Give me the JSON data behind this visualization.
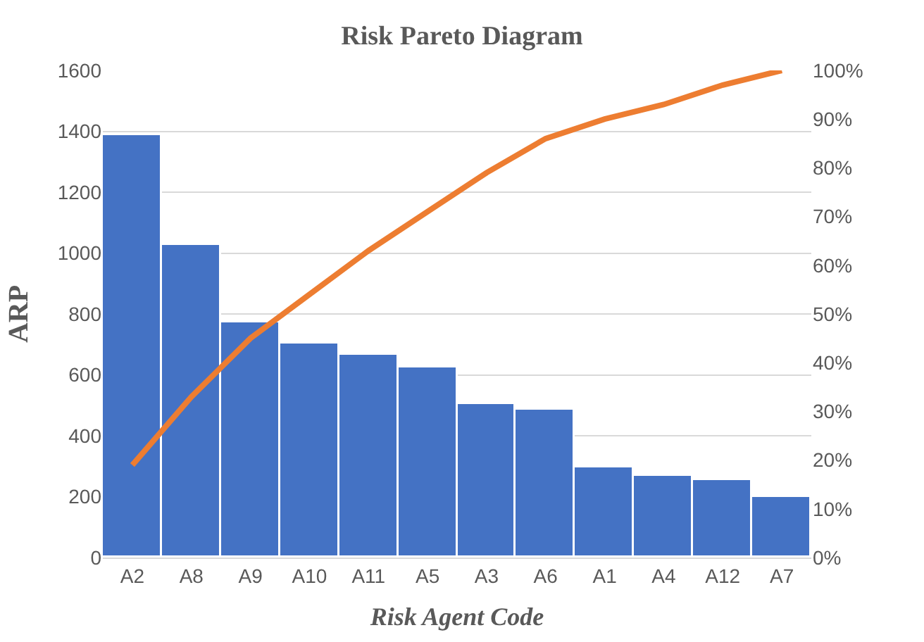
{
  "chart_data": {
    "type": "bar",
    "title": "Risk Pareto Diagram",
    "xlabel": "Risk Agent Code",
    "ylabel": "ARP",
    "categories": [
      "A2",
      "A8",
      "A9",
      "A10",
      "A11",
      "A5",
      "A3",
      "A6",
      "A1",
      "A4",
      "A12",
      "A7"
    ],
    "series": [
      {
        "color": "#4472c4",
        "values": [
          1385,
          1025,
          770,
          705,
          665,
          625,
          505,
          485,
          295,
          270,
          255,
          200
        ]
      },
      {
        "type": "line",
        "axis": "y2",
        "color": "#ed7d31",
        "values": [
          19,
          33,
          45,
          54,
          63,
          71,
          79,
          86,
          90,
          93,
          97,
          100
        ]
      }
    ],
    "ylim": [
      0,
      1600
    ],
    "yticks": [
      0,
      200,
      400,
      600,
      800,
      1000,
      1200,
      1400,
      1600
    ],
    "y2lim": [
      0,
      100
    ],
    "y2ticks": [
      {
        "value": 0,
        "label": "0%"
      },
      {
        "value": 10,
        "label": "10%"
      },
      {
        "value": 20,
        "label": "20%"
      },
      {
        "value": 30,
        "label": "30%"
      },
      {
        "value": 40,
        "label": "40%"
      },
      {
        "value": 50,
        "label": "50%"
      },
      {
        "value": 60,
        "label": "60%"
      },
      {
        "value": 70,
        "label": "70%"
      },
      {
        "value": 80,
        "label": "80%"
      },
      {
        "value": 90,
        "label": "90%"
      },
      {
        "value": 100,
        "label": "100%"
      }
    ],
    "grid": "y",
    "marker": "none",
    "line_style": "solid"
  }
}
